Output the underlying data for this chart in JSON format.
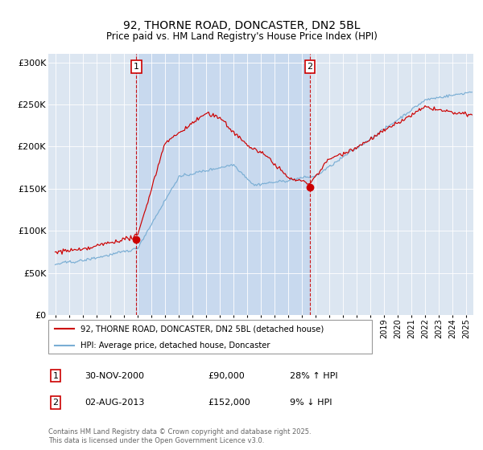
{
  "title": "92, THORNE ROAD, DONCASTER, DN2 5BL",
  "subtitle": "Price paid vs. HM Land Registry's House Price Index (HPI)",
  "bg_color": "#dce6f1",
  "shade_color": "#c8d9ee",
  "red_color": "#cc0000",
  "blue_color": "#7aaed4",
  "annotation1": {
    "label": "1",
    "date": "30-NOV-2000",
    "price": 90000,
    "pct": "28% ↑ HPI",
    "x_year": 2000.92
  },
  "annotation2": {
    "label": "2",
    "date": "02-AUG-2013",
    "price": 152000,
    "pct": "9% ↓ HPI",
    "x_year": 2013.58
  },
  "legend_line1": "92, THORNE ROAD, DONCASTER, DN2 5BL (detached house)",
  "legend_line2": "HPI: Average price, detached house, Doncaster",
  "copyright": "Contains HM Land Registry data © Crown copyright and database right 2025.\nThis data is licensed under the Open Government Licence v3.0.",
  "ylim": [
    0,
    310000
  ],
  "yticks": [
    0,
    50000,
    100000,
    150000,
    200000,
    250000,
    300000
  ],
  "xlim": [
    1994.5,
    2025.5
  ],
  "seed": 42
}
